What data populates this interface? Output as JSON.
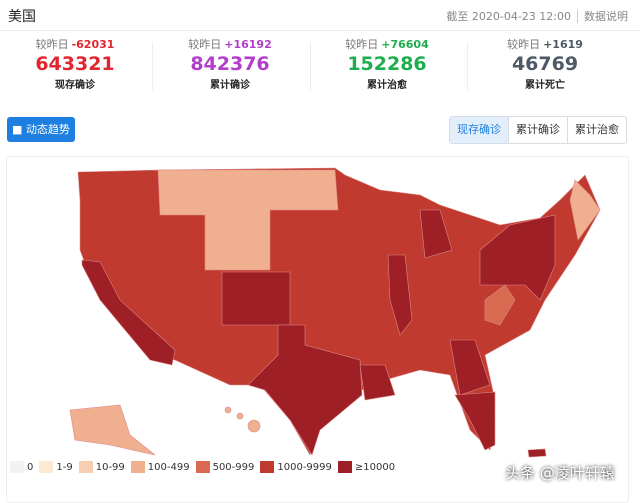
{
  "header": {
    "title": "美国",
    "timestamp": "截至 2020-04-23 12:00",
    "info": "数据说明"
  },
  "stats": [
    {
      "compare_label": "较昨日",
      "delta": "-62031",
      "value": "643321",
      "name": "现存确诊",
      "color": "#e0262e"
    },
    {
      "compare_label": "较昨日",
      "delta": "+16192",
      "value": "842376",
      "name": "累计确诊",
      "color": "#b23ecb"
    },
    {
      "compare_label": "较昨日",
      "delta": "+76604",
      "value": "152286",
      "name": "累计治愈",
      "color": "#1eae4e"
    },
    {
      "compare_label": "较昨日",
      "delta": "+1619",
      "value": "46769",
      "name": "累计死亡",
      "color": "#4e5a65"
    }
  ],
  "trend_button": "动态趋势",
  "tabs": [
    "现存确诊",
    "累计确诊",
    "累计治愈"
  ],
  "legend": [
    {
      "label": "0",
      "color": "#f2f2f2"
    },
    {
      "label": "1-9",
      "color": "#fde9d2"
    },
    {
      "label": "10-99",
      "color": "#f7cfb0"
    },
    {
      "label": "100-499",
      "color": "#f0b08f"
    },
    {
      "label": "500-999",
      "color": "#d96a52"
    },
    {
      "label": "1000-9999",
      "color": "#c03a30"
    },
    {
      "label": "≥10000",
      "color": "#9e1f25"
    }
  ],
  "watermark": "头条 @凌叶轩辕"
}
